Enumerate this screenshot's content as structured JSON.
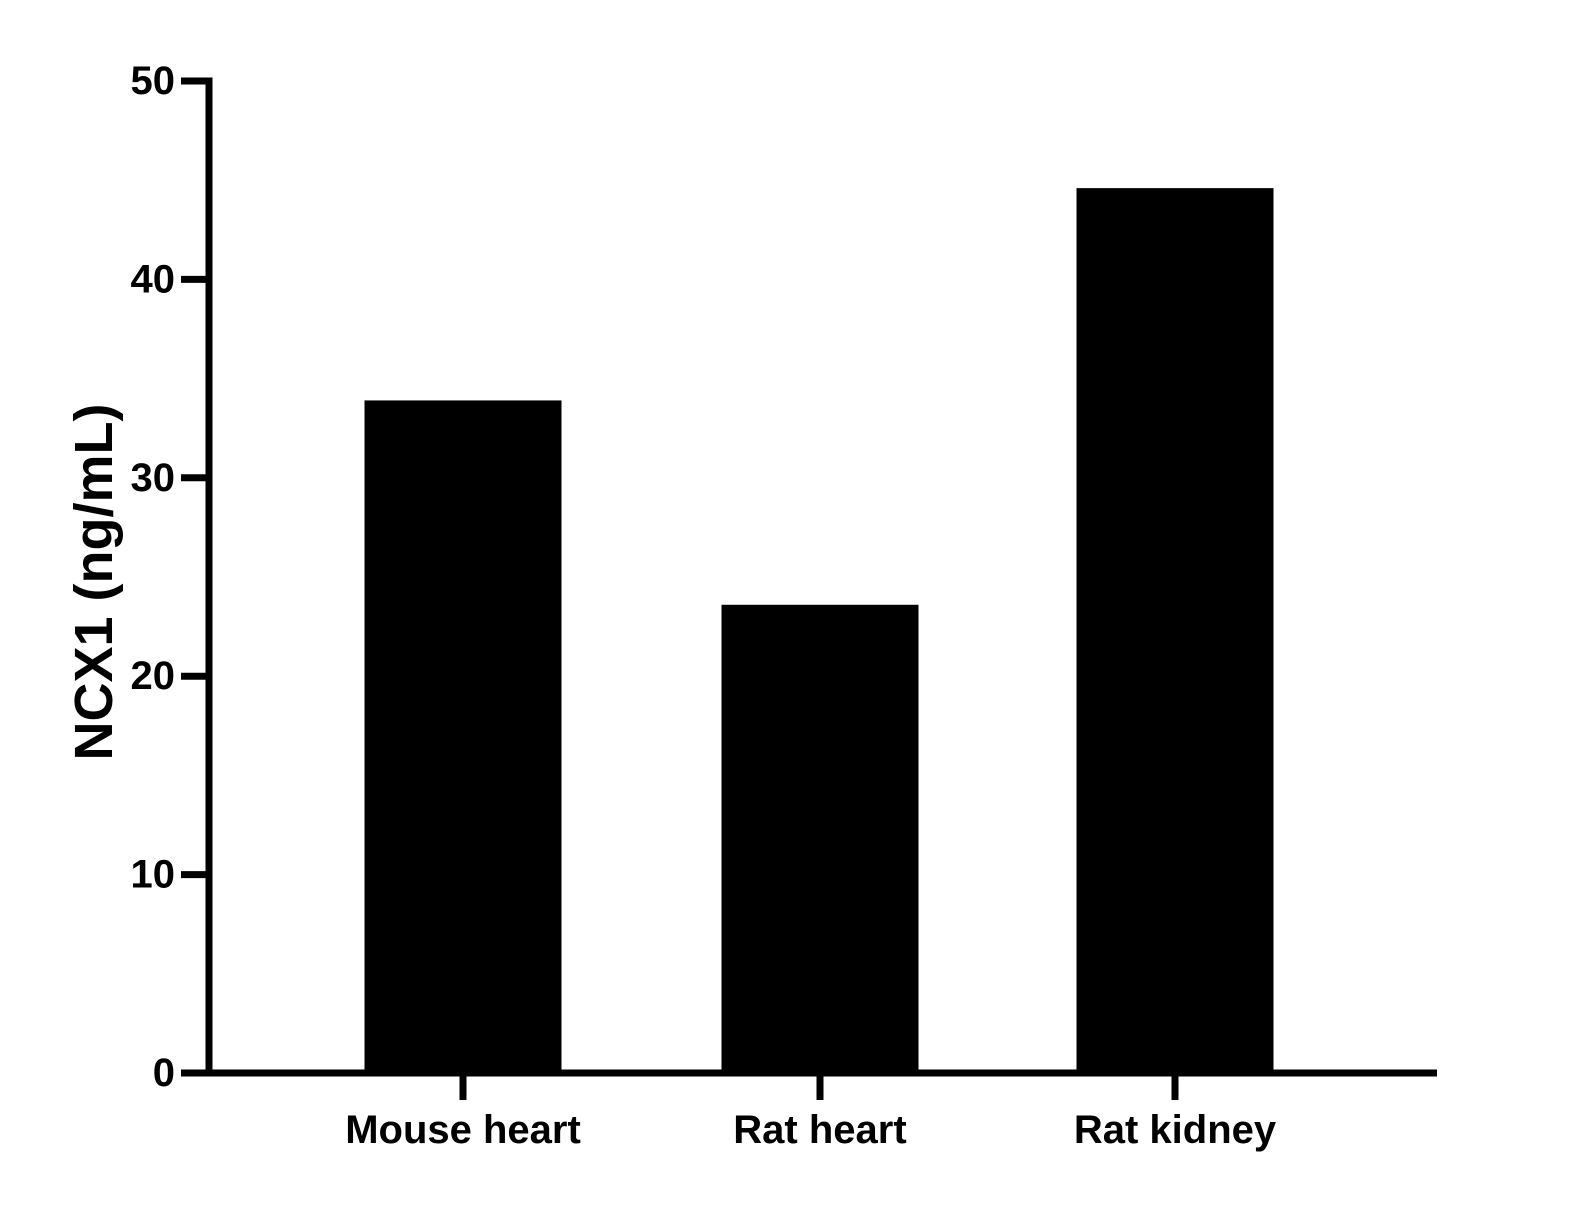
{
  "chart_data": {
    "type": "bar",
    "title": "",
    "xlabel": "",
    "ylabel": "NCX1 (ng/mL)",
    "categories": [
      "Mouse heart",
      "Rat heart",
      "Rat kidney"
    ],
    "values": [
      33.9,
      23.6,
      44.6
    ],
    "ylim": [
      0,
      50
    ],
    "yticks": [
      0,
      10,
      20,
      30,
      40,
      50
    ],
    "ytick_labels": [
      "0",
      "10",
      "20",
      "30",
      "40",
      "50"
    ],
    "grid": false,
    "legend": "none",
    "bar_color": "#000000",
    "axis_color": "#000000"
  }
}
